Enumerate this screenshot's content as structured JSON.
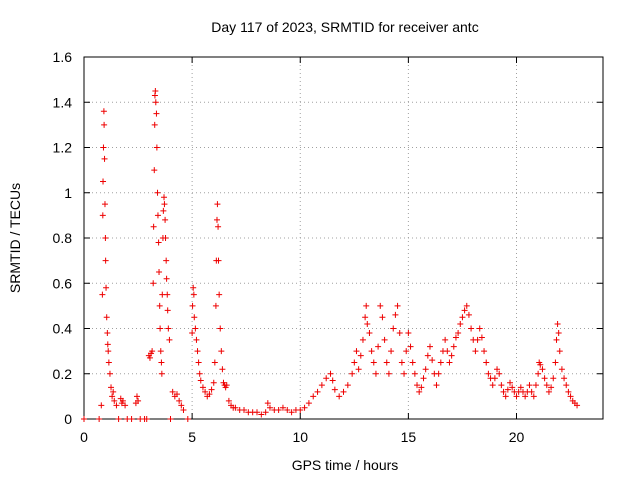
{
  "chart_data": {
    "type": "scatter",
    "title": "Day 117 of 2023, SRMTID for receiver antc",
    "xlabel": "GPS time / hours",
    "ylabel": "SRMTID / TECUs",
    "xlim": [
      0,
      24
    ],
    "ylim": [
      0,
      1.6
    ],
    "xticks": [
      0,
      5,
      10,
      15,
      20
    ],
    "xtick_labels": [
      "0",
      "5",
      "10",
      "15",
      "20"
    ],
    "yticks": [
      0,
      0.2,
      0.4,
      0.6,
      0.8,
      1,
      1.2,
      1.4,
      1.6
    ],
    "ytick_labels": [
      "0",
      "0.2",
      "0.4",
      "0.6",
      "0.8",
      "1",
      "1.2",
      "1.4",
      "1.6"
    ],
    "grid": true,
    "marker": "+",
    "color": "#ee0000",
    "series": [
      {
        "name": "SRMTID",
        "points": [
          [
            0.0,
            0.0
          ],
          [
            0.7,
            0.0
          ],
          [
            0.8,
            0.06
          ],
          [
            0.85,
            0.55
          ],
          [
            0.87,
            0.9
          ],
          [
            0.88,
            1.05
          ],
          [
            0.9,
            1.2
          ],
          [
            0.92,
            1.36
          ],
          [
            0.93,
            1.3
          ],
          [
            0.95,
            1.15
          ],
          [
            0.97,
            0.95
          ],
          [
            0.99,
            0.8
          ],
          [
            1.0,
            0.7
          ],
          [
            1.02,
            0.58
          ],
          [
            1.05,
            0.45
          ],
          [
            1.08,
            0.38
          ],
          [
            1.1,
            0.33
          ],
          [
            1.12,
            0.3
          ],
          [
            1.15,
            0.25
          ],
          [
            1.2,
            0.2
          ],
          [
            1.25,
            0.14
          ],
          [
            1.3,
            0.1
          ],
          [
            1.35,
            0.12
          ],
          [
            1.4,
            0.08
          ],
          [
            1.5,
            0.06
          ],
          [
            1.6,
            0.0
          ],
          [
            1.7,
            0.09
          ],
          [
            1.75,
            0.07
          ],
          [
            1.8,
            0.08
          ],
          [
            1.9,
            0.06
          ],
          [
            2.0,
            0.0
          ],
          [
            2.2,
            0.0
          ],
          [
            2.4,
            0.07
          ],
          [
            2.45,
            0.1
          ],
          [
            2.5,
            0.08
          ],
          [
            2.6,
            0.0
          ],
          [
            2.8,
            0.0
          ],
          [
            2.9,
            0.0
          ],
          [
            3.0,
            0.28
          ],
          [
            3.05,
            0.27
          ],
          [
            3.1,
            0.29
          ],
          [
            3.15,
            0.3
          ],
          [
            3.2,
            0.6
          ],
          [
            3.22,
            0.85
          ],
          [
            3.25,
            1.1
          ],
          [
            3.27,
            1.3
          ],
          [
            3.28,
            1.43
          ],
          [
            3.3,
            1.45
          ],
          [
            3.32,
            1.4
          ],
          [
            3.35,
            1.35
          ],
          [
            3.37,
            1.2
          ],
          [
            3.4,
            1.0
          ],
          [
            3.42,
            0.9
          ],
          [
            3.45,
            0.78
          ],
          [
            3.47,
            0.65
          ],
          [
            3.5,
            0.5
          ],
          [
            3.52,
            0.4
          ],
          [
            3.55,
            0.3
          ],
          [
            3.58,
            0.25
          ],
          [
            3.6,
            0.2
          ],
          [
            3.62,
            0.55
          ],
          [
            3.65,
            0.8
          ],
          [
            3.67,
            0.92
          ],
          [
            3.7,
            0.98
          ],
          [
            3.72,
            0.95
          ],
          [
            3.75,
            0.88
          ],
          [
            3.77,
            0.8
          ],
          [
            3.8,
            0.7
          ],
          [
            3.82,
            0.62
          ],
          [
            3.85,
            0.55
          ],
          [
            3.87,
            0.48
          ],
          [
            3.9,
            0.4
          ],
          [
            3.95,
            0.35
          ],
          [
            4.0,
            0.0
          ],
          [
            4.1,
            0.12
          ],
          [
            4.2,
            0.1
          ],
          [
            4.3,
            0.11
          ],
          [
            4.4,
            0.08
          ],
          [
            4.5,
            0.06
          ],
          [
            4.6,
            0.04
          ],
          [
            4.8,
            0.0
          ],
          [
            5.0,
            0.38
          ],
          [
            5.02,
            0.5
          ],
          [
            5.05,
            0.58
          ],
          [
            5.08,
            0.55
          ],
          [
            5.1,
            0.45
          ],
          [
            5.15,
            0.4
          ],
          [
            5.2,
            0.35
          ],
          [
            5.25,
            0.3
          ],
          [
            5.3,
            0.25
          ],
          [
            5.35,
            0.2
          ],
          [
            5.4,
            0.17
          ],
          [
            5.5,
            0.14
          ],
          [
            5.6,
            0.12
          ],
          [
            5.7,
            0.1
          ],
          [
            5.8,
            0.11
          ],
          [
            5.9,
            0.13
          ],
          [
            6.0,
            0.16
          ],
          [
            6.05,
            0.25
          ],
          [
            6.1,
            0.5
          ],
          [
            6.12,
            0.7
          ],
          [
            6.15,
            0.88
          ],
          [
            6.17,
            0.95
          ],
          [
            6.2,
            0.85
          ],
          [
            6.22,
            0.7
          ],
          [
            6.25,
            0.55
          ],
          [
            6.3,
            0.4
          ],
          [
            6.35,
            0.3
          ],
          [
            6.4,
            0.22
          ],
          [
            6.45,
            0.16
          ],
          [
            6.5,
            0.15
          ],
          [
            6.55,
            0.14
          ],
          [
            6.6,
            0.15
          ],
          [
            6.7,
            0.08
          ],
          [
            6.8,
            0.06
          ],
          [
            6.9,
            0.05
          ],
          [
            7.0,
            0.05
          ],
          [
            7.2,
            0.04
          ],
          [
            7.4,
            0.04
          ],
          [
            7.6,
            0.03
          ],
          [
            7.8,
            0.03
          ],
          [
            8.0,
            0.03
          ],
          [
            8.2,
            0.02
          ],
          [
            8.4,
            0.03
          ],
          [
            8.5,
            0.07
          ],
          [
            8.6,
            0.05
          ],
          [
            8.8,
            0.04
          ],
          [
            9.0,
            0.04
          ],
          [
            9.2,
            0.05
          ],
          [
            9.4,
            0.04
          ],
          [
            9.6,
            0.03
          ],
          [
            9.8,
            0.04
          ],
          [
            10.0,
            0.04
          ],
          [
            10.2,
            0.05
          ],
          [
            10.4,
            0.07
          ],
          [
            10.6,
            0.1
          ],
          [
            10.8,
            0.12
          ],
          [
            11.0,
            0.15
          ],
          [
            11.2,
            0.18
          ],
          [
            11.4,
            0.2
          ],
          [
            11.5,
            0.17
          ],
          [
            11.6,
            0.13
          ],
          [
            11.8,
            0.1
          ],
          [
            12.0,
            0.12
          ],
          [
            12.2,
            0.15
          ],
          [
            12.4,
            0.2
          ],
          [
            12.5,
            0.25
          ],
          [
            12.6,
            0.3
          ],
          [
            12.7,
            0.22
          ],
          [
            12.8,
            0.28
          ],
          [
            12.9,
            0.35
          ],
          [
            13.0,
            0.45
          ],
          [
            13.05,
            0.5
          ],
          [
            13.1,
            0.42
          ],
          [
            13.2,
            0.38
          ],
          [
            13.3,
            0.3
          ],
          [
            13.4,
            0.25
          ],
          [
            13.5,
            0.2
          ],
          [
            13.6,
            0.32
          ],
          [
            13.7,
            0.5
          ],
          [
            13.8,
            0.45
          ],
          [
            13.9,
            0.35
          ],
          [
            14.0,
            0.25
          ],
          [
            14.1,
            0.2
          ],
          [
            14.2,
            0.3
          ],
          [
            14.3,
            0.4
          ],
          [
            14.4,
            0.46
          ],
          [
            14.5,
            0.5
          ],
          [
            14.6,
            0.38
          ],
          [
            14.7,
            0.25
          ],
          [
            14.8,
            0.2
          ],
          [
            14.9,
            0.3
          ],
          [
            15.0,
            0.38
          ],
          [
            15.1,
            0.32
          ],
          [
            15.2,
            0.25
          ],
          [
            15.3,
            0.2
          ],
          [
            15.4,
            0.15
          ],
          [
            15.5,
            0.12
          ],
          [
            15.6,
            0.14
          ],
          [
            15.7,
            0.18
          ],
          [
            15.8,
            0.22
          ],
          [
            15.9,
            0.28
          ],
          [
            16.0,
            0.32
          ],
          [
            16.1,
            0.26
          ],
          [
            16.2,
            0.2
          ],
          [
            16.3,
            0.15
          ],
          [
            16.4,
            0.2
          ],
          [
            16.5,
            0.25
          ],
          [
            16.6,
            0.3
          ],
          [
            16.7,
            0.35
          ],
          [
            16.8,
            0.3
          ],
          [
            16.9,
            0.25
          ],
          [
            17.0,
            0.28
          ],
          [
            17.1,
            0.32
          ],
          [
            17.2,
            0.36
          ],
          [
            17.3,
            0.38
          ],
          [
            17.4,
            0.42
          ],
          [
            17.5,
            0.45
          ],
          [
            17.6,
            0.48
          ],
          [
            17.7,
            0.5
          ],
          [
            17.8,
            0.46
          ],
          [
            17.9,
            0.4
          ],
          [
            18.0,
            0.35
          ],
          [
            18.1,
            0.3
          ],
          [
            18.2,
            0.35
          ],
          [
            18.3,
            0.4
          ],
          [
            18.4,
            0.36
          ],
          [
            18.5,
            0.3
          ],
          [
            18.6,
            0.25
          ],
          [
            18.7,
            0.2
          ],
          [
            18.8,
            0.18
          ],
          [
            18.9,
            0.15
          ],
          [
            19.0,
            0.18
          ],
          [
            19.1,
            0.22
          ],
          [
            19.2,
            0.2
          ],
          [
            19.3,
            0.15
          ],
          [
            19.4,
            0.12
          ],
          [
            19.5,
            0.1
          ],
          [
            19.6,
            0.13
          ],
          [
            19.7,
            0.16
          ],
          [
            19.8,
            0.14
          ],
          [
            19.9,
            0.12
          ],
          [
            20.0,
            0.1
          ],
          [
            20.1,
            0.12
          ],
          [
            20.2,
            0.14
          ],
          [
            20.3,
            0.12
          ],
          [
            20.4,
            0.1
          ],
          [
            20.5,
            0.12
          ],
          [
            20.6,
            0.15
          ],
          [
            20.7,
            0.12
          ],
          [
            20.8,
            0.1
          ],
          [
            20.9,
            0.15
          ],
          [
            21.0,
            0.2
          ],
          [
            21.05,
            0.25
          ],
          [
            21.1,
            0.24
          ],
          [
            21.2,
            0.22
          ],
          [
            21.3,
            0.18
          ],
          [
            21.4,
            0.15
          ],
          [
            21.5,
            0.12
          ],
          [
            21.6,
            0.14
          ],
          [
            21.7,
            0.18
          ],
          [
            21.8,
            0.25
          ],
          [
            21.85,
            0.35
          ],
          [
            21.9,
            0.42
          ],
          [
            21.95,
            0.38
          ],
          [
            22.0,
            0.3
          ],
          [
            22.1,
            0.22
          ],
          [
            22.2,
            0.18
          ],
          [
            22.3,
            0.15
          ],
          [
            22.4,
            0.12
          ],
          [
            22.5,
            0.1
          ],
          [
            22.6,
            0.08
          ],
          [
            22.7,
            0.07
          ],
          [
            22.8,
            0.06
          ]
        ]
      }
    ]
  }
}
